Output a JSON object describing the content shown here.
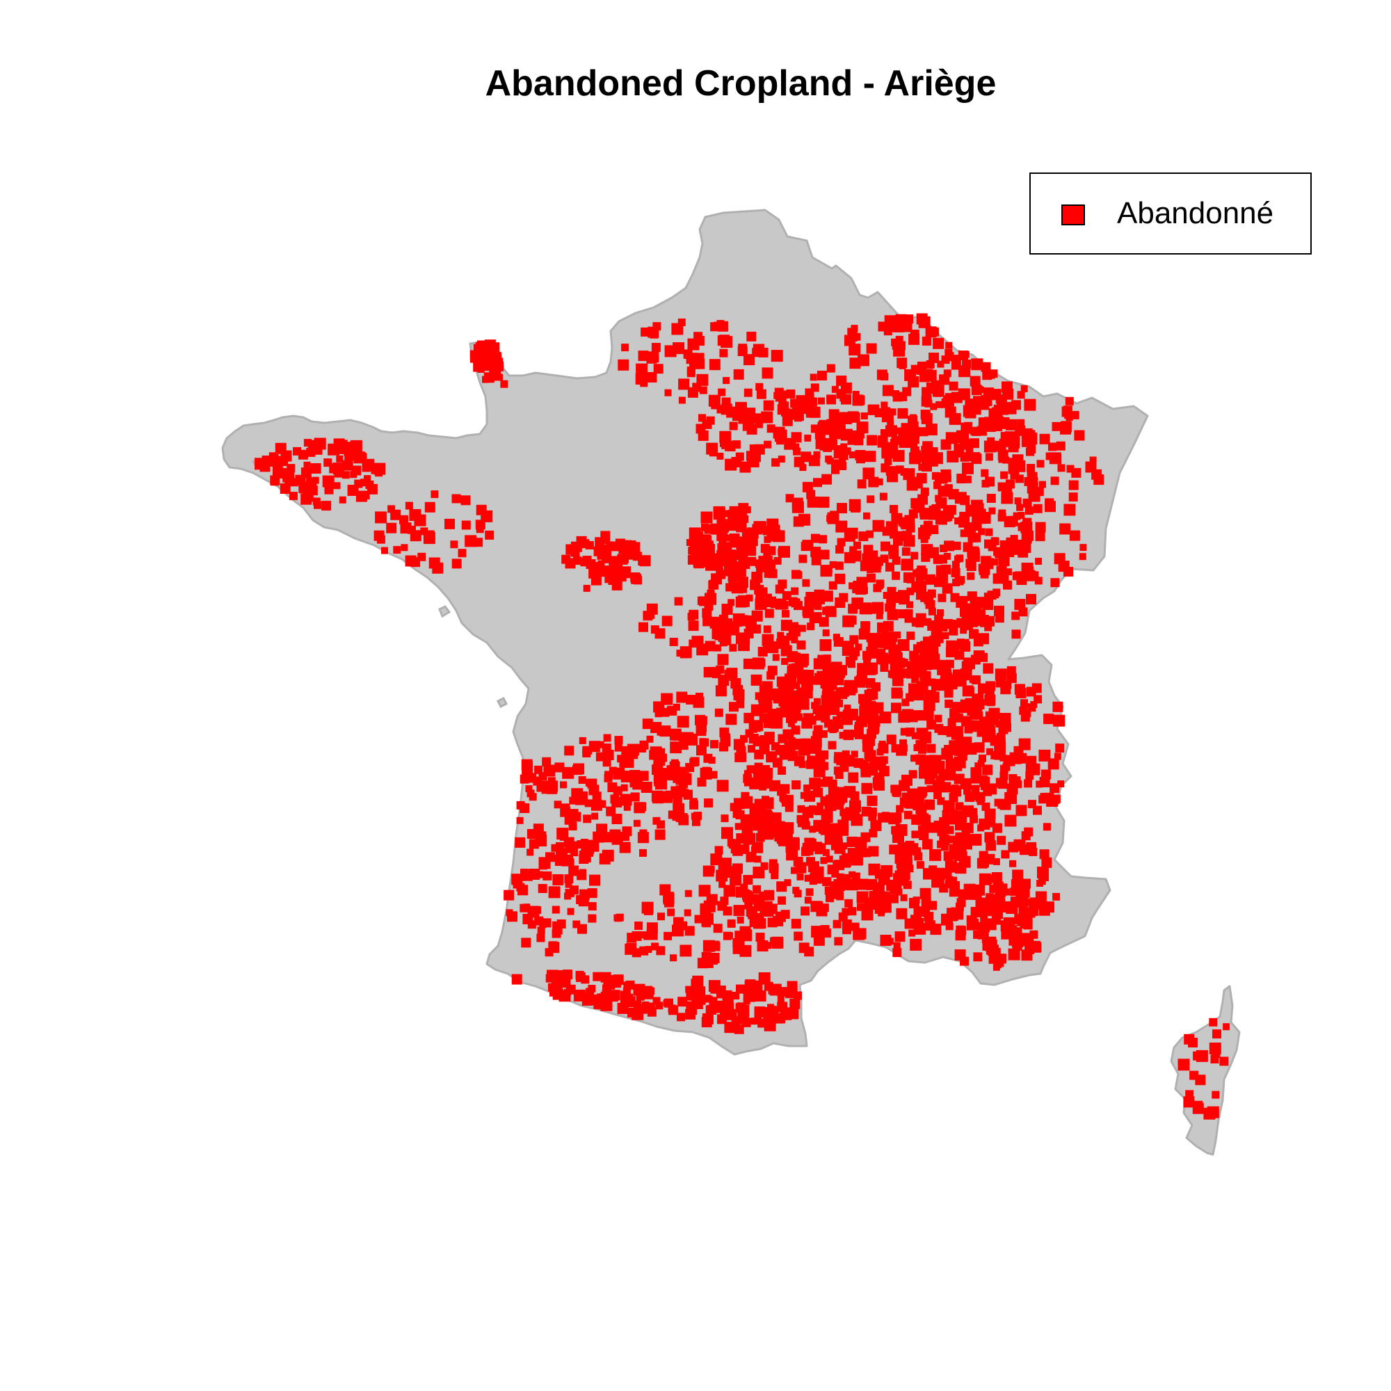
{
  "map": {
    "title": "Abandoned Cropland - Ariège",
    "land_color": "#c8c8c8",
    "border_color": "#b0b0b0",
    "marker_color": "#ff0000"
  },
  "legend": {
    "items": [
      {
        "label": "Abandonné",
        "color": "#ff0000",
        "symbol": "square"
      }
    ]
  }
}
